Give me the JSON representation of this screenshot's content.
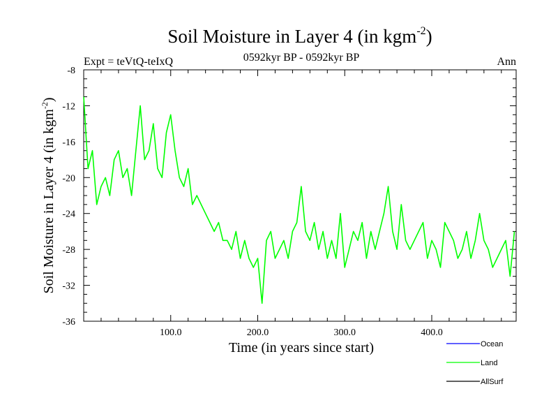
{
  "chart_data": {
    "type": "line",
    "title": "Soil Moisture in Layer 4 (in kgm",
    "title_sup": "-2",
    "title_close": ")",
    "subtitle_left": "Expt = teVtQ-teIxQ",
    "subtitle_center": "0592kyr BP - 0592kyr BP",
    "subtitle_right": "Ann",
    "xlabel": "Time (in years since start)",
    "ylabel": "Soil Moisture in Layer 4 (in kgm",
    "ylabel_sup": "-2",
    "ylabel_close": ")",
    "xlim": [
      0,
      497
    ],
    "ylim": [
      -36,
      -8
    ],
    "xticks": [
      100,
      200,
      300,
      400
    ],
    "xtick_labels": [
      "100.0",
      "200.0",
      "300.0",
      "400.0"
    ],
    "yticks": [
      -36,
      -32,
      -28,
      -24,
      -20,
      -16,
      -12,
      -8
    ],
    "ytick_labels": [
      "-36",
      "-32",
      "-28",
      "-24",
      "-20",
      "-16",
      "-12",
      "-8"
    ],
    "grid": false,
    "legend_position": "bottom-right",
    "series": [
      {
        "name": "Land",
        "color": "#00ff00",
        "x": [
          0,
          5,
          10,
          15,
          20,
          25,
          30,
          35,
          40,
          45,
          50,
          55,
          60,
          65,
          70,
          75,
          80,
          85,
          90,
          95,
          100,
          105,
          110,
          115,
          120,
          125,
          130,
          135,
          140,
          145,
          150,
          155,
          160,
          165,
          170,
          175,
          180,
          185,
          190,
          195,
          200,
          205,
          210,
          215,
          220,
          225,
          230,
          235,
          240,
          245,
          250,
          255,
          260,
          265,
          270,
          275,
          280,
          285,
          290,
          295,
          300,
          305,
          310,
          315,
          320,
          325,
          330,
          335,
          340,
          345,
          350,
          355,
          360,
          365,
          370,
          375,
          380,
          385,
          390,
          395,
          400,
          405,
          410,
          415,
          420,
          425,
          430,
          435,
          440,
          445,
          450,
          455,
          460,
          465,
          470,
          475,
          480,
          485,
          490,
          495
        ],
        "values": [
          -11,
          -19,
          -17,
          -23,
          -21,
          -20,
          -22,
          -18,
          -17,
          -20,
          -19,
          -22,
          -17,
          -12,
          -18,
          -17,
          -14,
          -19,
          -20,
          -15,
          -13,
          -17,
          -20,
          -21,
          -19,
          -23,
          -22,
          -23,
          -24,
          -25,
          -26,
          -25,
          -27,
          -27,
          -28,
          -26,
          -29,
          -27,
          -29,
          -30,
          -29,
          -34,
          -27,
          -26,
          -29,
          -28,
          -27,
          -29,
          -26,
          -25,
          -21,
          -26,
          -27,
          -25,
          -28,
          -26,
          -29,
          -27,
          -29,
          -24,
          -30,
          -28,
          -26,
          -27,
          -25,
          -29,
          -26,
          -28,
          -26,
          -24,
          -21,
          -26,
          -28,
          -23,
          -27,
          -28,
          -27,
          -26,
          -25,
          -29,
          -27,
          -28,
          -30,
          -25,
          -26,
          -27,
          -29,
          -28,
          -26,
          -29,
          -27,
          -24,
          -27,
          -28,
          -30,
          -29,
          -28,
          -27,
          -31,
          -26
        ]
      },
      {
        "name": "Ocean",
        "color": "#0000ff",
        "x": [],
        "values": []
      },
      {
        "name": "AllSurf",
        "color": "#000000",
        "x": [],
        "values": []
      }
    ]
  },
  "legend": {
    "ocean": "Ocean",
    "land": "Land",
    "allsurf": "AllSurf"
  }
}
